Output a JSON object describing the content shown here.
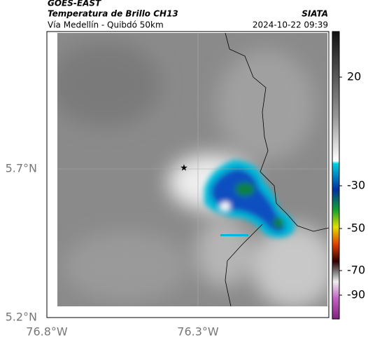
{
  "header": {
    "source": "GOES-EAST",
    "title": "Temperatura de Brillo CH13",
    "subtitle": "Vía Medellín - Quibdó 50km",
    "agency": "SIATA",
    "datetime": "2024-10-22 09:39"
  },
  "map": {
    "lat_labels": [
      "5.7°N",
      "5.2°N"
    ],
    "lon_labels": [
      "76.8°W",
      "76.3°W"
    ]
  },
  "colorbar": {
    "tick_labels": [
      "20",
      "-30",
      "-50",
      "-70",
      "-90"
    ]
  }
}
